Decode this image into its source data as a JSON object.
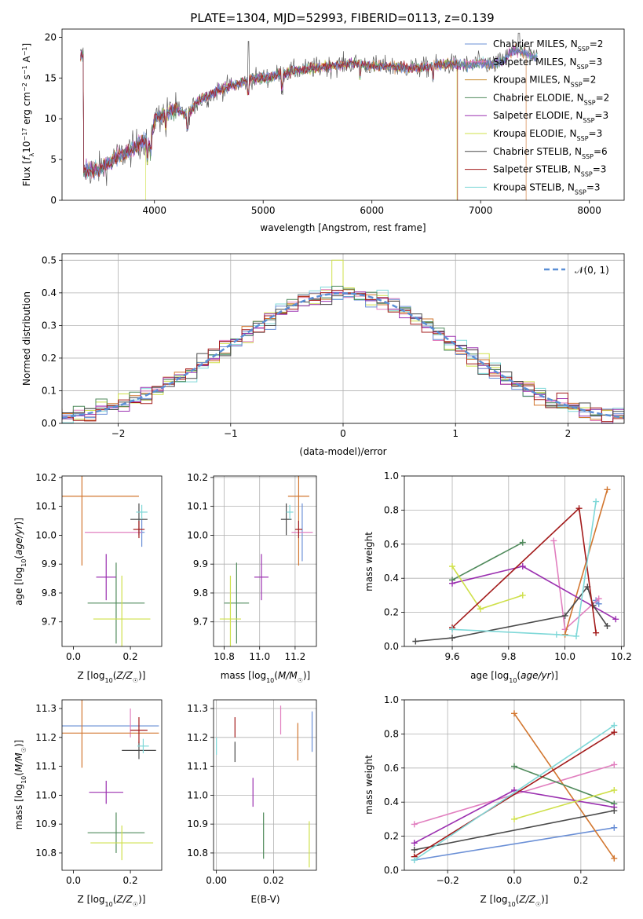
{
  "figure_title": "PLATE=1304, MJD=52993, FIBERID=0113, z=0.139",
  "colors": {
    "Chabrier MILES": "#6a8fd6",
    "Salpeter MILES": "#e17fbf",
    "Kroupa MILES": "#c98a2a",
    "Chabrier ELODIE": "#4f8a5b",
    "Salpeter ELODIE": "#9b30b0",
    "Kroupa ELODIE": "#cfe04a",
    "Chabrier STELIB": "#4a4a4a",
    "Salpeter STELIB": "#a31b1b",
    "Kroupa STELIB": "#7fd8d8",
    "Chabrier MILES 2": "#6a8fd6",
    "model_orange": "#d2762f",
    "normal": "#5b8fd6"
  },
  "chart_data": [
    {
      "type": "line",
      "panel": "spectrum",
      "xlabel": "wavelength [Angstrom, rest frame]",
      "ylabel": "Flux [fλ10⁻¹⁷ erg cm⁻² s⁻¹ A⁻¹]",
      "xlim": [
        3150,
        8320
      ],
      "ylim": [
        0,
        21
      ],
      "xticks": [
        4000,
        5000,
        6000,
        7000,
        8000
      ],
      "yticks": [
        0,
        5,
        10,
        15,
        20
      ],
      "grid": false,
      "legend_position": "upper-right",
      "legend": [
        "Chabrier MILES, N_SSP=2",
        "Salpeter MILES, N_SSP=3",
        "Kroupa MILES, N_SSP=2",
        "Chabrier ELODIE, N_SSP=2",
        "Salpeter ELODIE, N_SSP=3",
        "Kroupa ELODIE, N_SSP=3",
        "Chabrier STELIB, N_SSP=6",
        "Salpeter STELIB, N_SSP=3",
        "Kroupa STELIB, N_SSP=3"
      ],
      "continuum": [
        [
          3350,
          3.6
        ],
        [
          3500,
          3.8
        ],
        [
          3600,
          4.8
        ],
        [
          3700,
          5.6
        ],
        [
          3800,
          6.3
        ],
        [
          3900,
          7.5
        ],
        [
          3950,
          6.5
        ],
        [
          4000,
          10.0
        ],
        [
          4100,
          10.6
        ],
        [
          4200,
          11.2
        ],
        [
          4300,
          10.4
        ],
        [
          4400,
          12.2
        ],
        [
          4500,
          12.8
        ],
        [
          4600,
          13.6
        ],
        [
          4700,
          14.0
        ],
        [
          4800,
          14.4
        ],
        [
          4900,
          15.0
        ],
        [
          5000,
          15.0
        ],
        [
          5100,
          15.3
        ],
        [
          5200,
          15.6
        ],
        [
          5300,
          15.9
        ],
        [
          5400,
          16.1
        ],
        [
          5500,
          16.3
        ],
        [
          5600,
          16.4
        ],
        [
          5700,
          16.6
        ],
        [
          5800,
          16.8
        ],
        [
          5900,
          16.7
        ],
        [
          6000,
          16.5
        ],
        [
          6100,
          16.4
        ],
        [
          6200,
          16.4
        ],
        [
          6300,
          16.3
        ],
        [
          6400,
          16.2
        ],
        [
          6500,
          16.3
        ],
        [
          6600,
          16.6
        ],
        [
          6700,
          16.7
        ],
        [
          6800,
          16.6
        ],
        [
          6900,
          16.5
        ],
        [
          7000,
          16.9
        ],
        [
          7100,
          16.6
        ],
        [
          7200,
          17.0
        ],
        [
          7300,
          18.4
        ],
        [
          7400,
          18.1
        ],
        [
          7500,
          17.5
        ]
      ],
      "truncations": [
        {
          "series": "Kroupa ELODIE",
          "x": 3920
        },
        {
          "series": "Kroupa ELODIE",
          "x": 6780
        },
        {
          "series": "Salpeter STELIB",
          "x": 6790
        },
        {
          "series": "model_orange",
          "x": 7420
        }
      ],
      "data_extent": [
        3320,
        7520
      ]
    },
    {
      "type": "step",
      "panel": "residual histogram",
      "xlabel": "(data-model)/error",
      "ylabel": "Normed distribution",
      "xlim": [
        -2.5,
        2.5
      ],
      "ylim": [
        0,
        0.52
      ],
      "xticks": [
        -2,
        -1,
        0,
        1,
        2
      ],
      "yticks": [
        0,
        0.1,
        0.2,
        0.3,
        0.4,
        0.5
      ],
      "grid": true,
      "legend_position": "upper-right",
      "legend": [
        "𝒩(0, 1)"
      ],
      "bin_width": 0.1
    },
    {
      "type": "scatter",
      "panel": "age vs Z",
      "xlabel": "Z [log₁₀(Z/Z☉)]",
      "ylabel": "age  [log₁₀(age/yr)]",
      "xlim": [
        -0.04,
        0.31
      ],
      "ylim": [
        9.615,
        10.205
      ],
      "xticks": [
        0.0,
        0.2
      ],
      "yticks": [
        9.7,
        9.8,
        9.9,
        10.0,
        10.1,
        10.2
      ],
      "grid": false,
      "points": [
        {
          "series": "Chabrier MILES",
          "x": 0.24,
          "xerr": 0.01,
          "y": 10.01,
          "yerr": 0.05
        },
        {
          "series": "Salpeter MILES",
          "x": 0.14,
          "xerr": 0.1,
          "y": 10.01,
          "yerr": 0.0
        },
        {
          "series": "model_orange",
          "x": 0.03,
          "xerr": 0.2,
          "y": 10.135,
          "yerr": 0.24
        },
        {
          "series": "Chabrier ELODIE",
          "x": 0.15,
          "xerr": 0.1,
          "y": 9.765,
          "yerr": 0.14
        },
        {
          "series": "Salpeter ELODIE",
          "x": 0.115,
          "xerr": 0.035,
          "y": 9.855,
          "yerr": 0.08
        },
        {
          "series": "Kroupa ELODIE",
          "x": 0.17,
          "xerr": 0.1,
          "y": 9.71,
          "yerr": 0.15
        },
        {
          "series": "Chabrier STELIB",
          "x": 0.23,
          "xerr": 0.03,
          "y": 10.055,
          "yerr": 0.055
        },
        {
          "series": "Salpeter STELIB",
          "x": 0.23,
          "xerr": 0.02,
          "y": 10.02,
          "yerr": 0.03
        },
        {
          "series": "Kroupa STELIB",
          "x": 0.24,
          "xerr": 0.02,
          "y": 10.08,
          "yerr": 0.025
        }
      ]
    },
    {
      "type": "scatter",
      "panel": "age vs mass",
      "xlabel": "mass [log₁₀(M/M☉)]",
      "ylabel": "",
      "xlim": [
        10.74,
        11.32
      ],
      "ylim": [
        9.615,
        10.205
      ],
      "xticks": [
        10.8,
        11.0,
        11.2
      ],
      "yticks": [
        9.7,
        9.8,
        9.9,
        10.0,
        10.1,
        10.2
      ],
      "grid": true,
      "points": [
        {
          "series": "Chabrier MILES",
          "x": 11.24,
          "xerr": 0.0,
          "y": 10.01,
          "yerr": 0.1
        },
        {
          "series": "Salpeter MILES",
          "x": 11.24,
          "xerr": 0.06,
          "y": 10.01,
          "yerr": 0.0
        },
        {
          "series": "model_orange",
          "x": 11.22,
          "xerr": 0.06,
          "y": 10.135,
          "yerr": 0.24
        },
        {
          "series": "Chabrier ELODIE",
          "x": 10.87,
          "xerr": 0.07,
          "y": 9.765,
          "yerr": 0.14
        },
        {
          "series": "Salpeter ELODIE",
          "x": 11.01,
          "xerr": 0.04,
          "y": 9.855,
          "yerr": 0.08
        },
        {
          "series": "Kroupa ELODIE",
          "x": 10.835,
          "xerr": 0.06,
          "y": 9.71,
          "yerr": 0.15
        },
        {
          "series": "Chabrier STELIB",
          "x": 11.15,
          "xerr": 0.03,
          "y": 10.055,
          "yerr": 0.055
        },
        {
          "series": "Salpeter STELIB",
          "x": 11.22,
          "xerr": 0.02,
          "y": 10.02,
          "yerr": 0.03
        },
        {
          "series": "Kroupa STELIB",
          "x": 11.17,
          "xerr": 0.02,
          "y": 10.08,
          "yerr": 0.025
        }
      ]
    },
    {
      "type": "line",
      "panel": "mass weight vs age",
      "xlabel": "age  [log₁₀(age/yr)]",
      "ylabel": "mass weight",
      "xlim": [
        9.43,
        10.21
      ],
      "ylim": [
        0,
        1.0
      ],
      "xticks": [
        9.6,
        9.8,
        10.0,
        10.2
      ],
      "yticks": [
        0,
        0.2,
        0.4,
        0.6,
        0.8,
        1.0
      ],
      "grid": true,
      "series": [
        {
          "name": "Chabrier MILES",
          "x": [
            10.11,
            10.12
          ],
          "y": [
            0.27,
            0.25
          ]
        },
        {
          "name": "Salpeter MILES",
          "x": [
            9.96,
            10.0,
            10.12
          ],
          "y": [
            0.62,
            0.1,
            0.28
          ]
        },
        {
          "name": "model_orange",
          "x": [
            10.0,
            10.15
          ],
          "y": [
            0.07,
            0.92
          ]
        },
        {
          "name": "Chabrier ELODIE",
          "x": [
            9.6,
            9.85
          ],
          "y": [
            0.39,
            0.61
          ]
        },
        {
          "name": "Salpeter ELODIE",
          "x": [
            9.6,
            9.85,
            10.18
          ],
          "y": [
            0.37,
            0.47,
            0.16
          ]
        },
        {
          "name": "Kroupa ELODIE",
          "x": [
            9.6,
            9.7,
            9.85
          ],
          "y": [
            0.47,
            0.22,
            0.3
          ]
        },
        {
          "name": "Chabrier STELIB",
          "x": [
            9.47,
            9.6,
            10.0,
            10.08,
            10.1,
            10.15
          ],
          "y": [
            0.03,
            0.05,
            0.18,
            0.35,
            0.24,
            0.12
          ]
        },
        {
          "name": "Salpeter STELIB",
          "x": [
            9.6,
            10.05,
            10.11
          ],
          "y": [
            0.11,
            0.81,
            0.08
          ]
        },
        {
          "name": "Kroupa STELIB",
          "x": [
            9.6,
            9.97,
            10.04,
            10.11
          ],
          "y": [
            0.1,
            0.07,
            0.06,
            0.85
          ]
        }
      ]
    },
    {
      "type": "scatter",
      "panel": "mass vs Z",
      "xlabel": "Z [log₁₀(Z/Z☉)]",
      "ylabel": "mass [log₁₀(M/M☉)]",
      "xlim": [
        -0.04,
        0.31
      ],
      "ylim": [
        10.74,
        11.33
      ],
      "xticks": [
        0.0,
        0.2
      ],
      "yticks": [
        10.8,
        10.9,
        11.0,
        11.1,
        11.2,
        11.3
      ],
      "grid": false,
      "points": [
        {
          "series": "Chabrier MILES",
          "x": 0.13,
          "xerr": 0.17,
          "y": 11.24,
          "yerr": 0.0
        },
        {
          "series": "Salpeter MILES",
          "x": 0.2,
          "xerr": 0.0,
          "y": 11.25,
          "yerr": 0.05
        },
        {
          "series": "model_orange",
          "x": 0.03,
          "xerr": 0.27,
          "y": 11.215,
          "yerr": 0.12
        },
        {
          "series": "Chabrier ELODIE",
          "x": 0.15,
          "xerr": 0.1,
          "y": 10.87,
          "yerr": 0.07
        },
        {
          "series": "Salpeter ELODIE",
          "x": 0.115,
          "xerr": 0.06,
          "y": 11.01,
          "yerr": 0.04
        },
        {
          "series": "Kroupa ELODIE",
          "x": 0.17,
          "xerr": 0.11,
          "y": 10.835,
          "yerr": 0.06
        },
        {
          "series": "Chabrier STELIB",
          "x": 0.23,
          "xerr": 0.06,
          "y": 11.155,
          "yerr": 0.03
        },
        {
          "series": "Salpeter STELIB",
          "x": 0.23,
          "xerr": 0.03,
          "y": 11.225,
          "yerr": 0.045
        },
        {
          "series": "Kroupa STELIB",
          "x": 0.245,
          "xerr": 0.02,
          "y": 11.17,
          "yerr": 0.025
        }
      ]
    },
    {
      "type": "scatter",
      "panel": "mass vs E(B-V)",
      "xlabel": "E(B-V)",
      "ylabel": "",
      "xlim": [
        -0.001,
        0.035
      ],
      "ylim": [
        10.74,
        11.33
      ],
      "xticks": [
        0.0,
        0.02
      ],
      "yticks": [
        10.8,
        10.9,
        11.0,
        11.1,
        11.2,
        11.3
      ],
      "grid": true,
      "points": [
        {
          "series": "Chabrier MILES",
          "x": 0.0335,
          "y": 11.22,
          "yerr": 0.07
        },
        {
          "series": "Salpeter MILES",
          "x": 0.0225,
          "y": 11.26,
          "yerr": 0.05
        },
        {
          "series": "model_orange",
          "x": 0.0285,
          "y": 11.185,
          "yerr": 0.065
        },
        {
          "series": "Chabrier ELODIE",
          "x": 0.0165,
          "y": 10.86,
          "yerr": 0.08
        },
        {
          "series": "Salpeter ELODIE",
          "x": 0.0128,
          "y": 11.01,
          "yerr": 0.05
        },
        {
          "series": "Kroupa ELODIE",
          "x": 0.0325,
          "y": 10.83,
          "yerr": 0.08
        },
        {
          "series": "Chabrier STELIB",
          "x": 0.0065,
          "y": 11.15,
          "yerr": 0.035
        },
        {
          "series": "Salpeter STELIB",
          "x": 0.0065,
          "y": 11.235,
          "yerr": 0.035
        },
        {
          "series": "Kroupa STELIB",
          "x": 0.0,
          "y": 11.17,
          "yerr": 0.03
        }
      ]
    },
    {
      "type": "line",
      "panel": "mass weight vs Z",
      "xlabel": "Z [log₁₀(Z/Z☉)]",
      "ylabel": "mass weight",
      "xlim": [
        -0.33,
        0.33
      ],
      "ylim": [
        0,
        1.0
      ],
      "xticks": [
        -0.2,
        0.0,
        0.2
      ],
      "yticks": [
        0,
        0.2,
        0.4,
        0.6,
        0.8,
        1.0
      ],
      "grid": true,
      "series": [
        {
          "name": "Chabrier MILES",
          "x": [
            -0.3,
            0.3
          ],
          "y": [
            0.06,
            0.25
          ]
        },
        {
          "name": "Salpeter MILES",
          "x": [
            -0.3,
            0.3
          ],
          "y": [
            0.27,
            0.62
          ]
        },
        {
          "name": "model_orange",
          "x": [
            0.0,
            0.3
          ],
          "y": [
            0.92,
            0.07
          ]
        },
        {
          "name": "Chabrier ELODIE",
          "x": [
            0.0,
            0.3
          ],
          "y": [
            0.61,
            0.39
          ]
        },
        {
          "name": "Salpeter ELODIE",
          "x": [
            -0.3,
            0.0,
            0.3
          ],
          "y": [
            0.16,
            0.47,
            0.37
          ]
        },
        {
          "name": "Kroupa ELODIE",
          "x": [
            0.0,
            0.3
          ],
          "y": [
            0.3,
            0.47
          ]
        },
        {
          "name": "Chabrier STELIB",
          "x": [
            -0.3,
            0.3
          ],
          "y": [
            0.12,
            0.35
          ]
        },
        {
          "name": "Salpeter STELIB",
          "x": [
            -0.3,
            0.3
          ],
          "y": [
            0.08,
            0.81
          ]
        },
        {
          "name": "Kroupa STELIB",
          "x": [
            -0.3,
            0.3
          ],
          "y": [
            0.06,
            0.85
          ]
        }
      ]
    }
  ]
}
